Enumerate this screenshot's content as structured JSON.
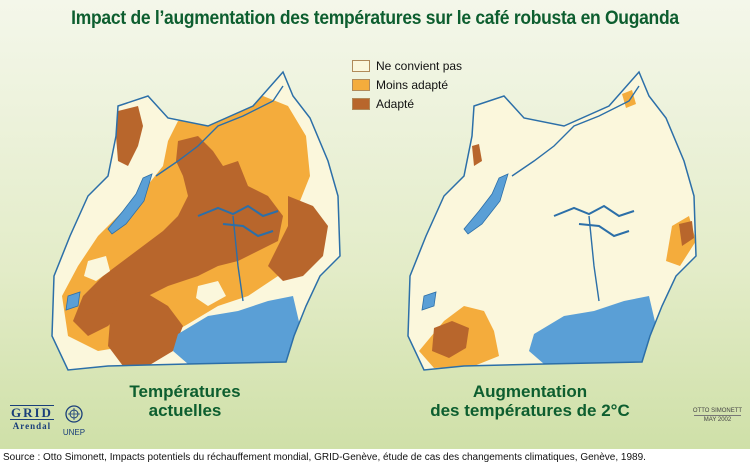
{
  "title": "Impact de l’augmentation des températures sur le café robusta en Ouganda",
  "legend": {
    "items": [
      {
        "label": "Ne convient pas",
        "color": "#fbf7dc"
      },
      {
        "label": "Moins adapté",
        "color": "#f4ac3c"
      },
      {
        "label": "Adapté",
        "color": "#b8662c"
      }
    ]
  },
  "maps": {
    "left_caption_line1": "Températures",
    "left_caption_line2": "actuelles",
    "right_caption_line1": "Augmentation",
    "right_caption_line2": "des  températures de 2°C"
  },
  "logos": {
    "grid_word": "GRID",
    "grid_sub": "Arendal",
    "unep_label": "UNEP"
  },
  "credit": {
    "author": "OTTO SIMONETT",
    "date": "MAY 2002"
  },
  "source": "Source : Otto Simonett, Impacts potentiels du réchauffement mondial, GRID-Genève, étude de cas des changements climatiques, Genève, 1989.",
  "colors": {
    "title": "#0d5e2f",
    "water": "#5a9fd6",
    "land_unsuitable": "#fbf7dc",
    "less_suitable": "#f4ac3c",
    "suitable": "#b8662c",
    "background": "#e3ecc8"
  }
}
